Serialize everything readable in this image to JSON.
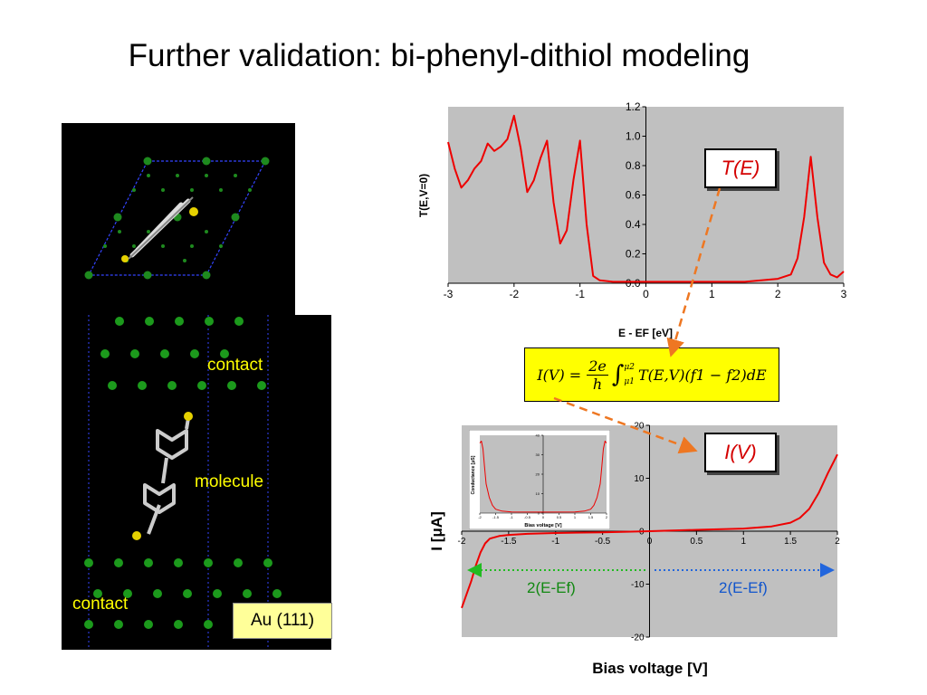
{
  "title": "Further validation: bi-phenyl-dithiol modeling",
  "left_panel": {
    "contact_top": "contact",
    "molecule": "molecule",
    "contact_bottom": "contact",
    "substrate": "Au (111)"
  },
  "callouts": {
    "transmission": "T(E)",
    "current": "I(V)"
  },
  "formula": {
    "lhs": "I(V) =",
    "frac_num": "2e",
    "frac_den": "h",
    "int_upper": "μ2",
    "int_lower": "μ1",
    "integrand": "T(E,V)(f1 − f2)dE"
  },
  "arrow_labels": {
    "left": "2(E-Ef)",
    "right": "2(E-Ef)"
  },
  "colors": {
    "curve": "#ee0000",
    "plot_bg": "#c0c0c0",
    "highlight": "#ffff00",
    "green_arrow": "#22bb22",
    "blue_arrow": "#2266dd",
    "orange_arrow": "#ee7722"
  },
  "chart_data": [
    {
      "type": "line",
      "xlabel": "E - EF [eV]",
      "ylabel": "T(E,V=0)",
      "xlim": [
        -3,
        3
      ],
      "ylim": [
        0,
        1.2
      ],
      "xticks": [
        "-3",
        "-2",
        "-1",
        "0",
        "1",
        "2",
        "3"
      ],
      "yticks": [
        "0.0",
        "0.2",
        "0.4",
        "0.6",
        "0.8",
        "1.0",
        "1.2"
      ],
      "x": [
        -3.0,
        -2.9,
        -2.8,
        -2.7,
        -2.6,
        -2.5,
        -2.4,
        -2.3,
        -2.2,
        -2.1,
        -2.0,
        -1.9,
        -1.8,
        -1.7,
        -1.6,
        -1.5,
        -1.4,
        -1.3,
        -1.2,
        -1.1,
        -1.0,
        -0.9,
        -0.8,
        -0.7,
        -0.5,
        0.0,
        0.5,
        1.0,
        1.5,
        2.0,
        2.2,
        2.3,
        2.4,
        2.5,
        2.6,
        2.7,
        2.8,
        2.9,
        3.0
      ],
      "y": [
        0.96,
        0.78,
        0.65,
        0.7,
        0.78,
        0.83,
        0.95,
        0.9,
        0.93,
        0.98,
        1.14,
        0.92,
        0.62,
        0.7,
        0.85,
        0.97,
        0.55,
        0.27,
        0.36,
        0.7,
        0.97,
        0.4,
        0.05,
        0.02,
        0.01,
        0.01,
        0.01,
        0.01,
        0.01,
        0.03,
        0.06,
        0.17,
        0.45,
        0.86,
        0.45,
        0.14,
        0.06,
        0.04,
        0.08
      ],
      "grid": false
    },
    {
      "type": "line",
      "xlabel": "Bias voltage [V]",
      "ylabel": "I [μA]",
      "xlim": [
        -2,
        2
      ],
      "ylim": [
        -20,
        20
      ],
      "xticks": [
        "-2",
        "-1.5",
        "-1",
        "-0.5",
        "0",
        "0.5",
        "1",
        "1.5",
        "2"
      ],
      "yticks": [
        "-20",
        "-10",
        "0",
        "10",
        "20"
      ],
      "x": [
        -2.0,
        -1.95,
        -1.9,
        -1.85,
        -1.8,
        -1.75,
        -1.7,
        -1.6,
        -1.5,
        -1.3,
        -1.0,
        -0.5,
        0.0,
        0.5,
        1.0,
        1.3,
        1.5,
        1.6,
        1.7,
        1.8,
        1.9,
        2.0
      ],
      "y": [
        -14.5,
        -12.0,
        -9.5,
        -6.5,
        -4.0,
        -2.3,
        -1.4,
        -0.9,
        -0.7,
        -0.5,
        -0.35,
        -0.2,
        0.0,
        0.25,
        0.5,
        0.9,
        1.6,
        2.5,
        4.2,
        7.2,
        11.0,
        14.5
      ],
      "grid": false
    },
    {
      "type": "line",
      "xlabel": "Bias voltage [V]",
      "ylabel": "Conductance [μS]",
      "xlim": [
        -2,
        2
      ],
      "ylim": [
        0,
        40
      ],
      "xticks": [
        "-2",
        "-1.5",
        "-1",
        "-0.5",
        "0",
        "0.5",
        "1",
        "1.5",
        "2"
      ],
      "yticks": [
        "0",
        "10",
        "20",
        "30",
        "40"
      ],
      "x": [
        -2.0,
        -1.95,
        -1.9,
        -1.85,
        -1.8,
        -1.7,
        -1.6,
        -1.5,
        -1.3,
        -1.0,
        0.0,
        1.0,
        1.3,
        1.5,
        1.6,
        1.7,
        1.8,
        1.85,
        1.9,
        1.95,
        2.0
      ],
      "y": [
        36,
        37,
        33,
        24,
        15,
        8,
        4,
        2,
        1,
        0.6,
        0.5,
        0.6,
        1,
        2,
        4,
        8,
        15,
        24,
        33,
        37,
        36
      ],
      "grid": false
    }
  ]
}
